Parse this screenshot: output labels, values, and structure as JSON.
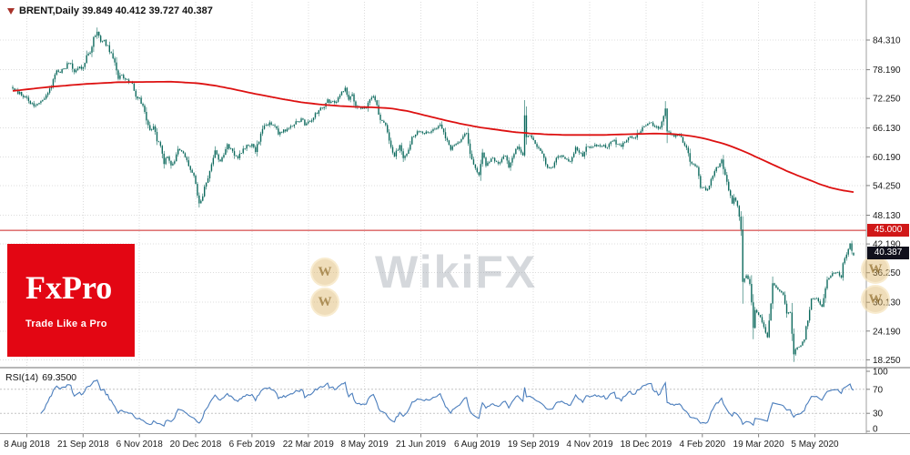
{
  "header": {
    "symbol_label": "BRENT,Daily",
    "ohlc": {
      "open": "39.849",
      "high": "40.412",
      "low": "39.727",
      "close": "40.387"
    },
    "display": "BRENT,Daily 39.849 40.412 39.727 40.387"
  },
  "price_axis": {
    "hline_label": "45.000",
    "current_price_label": "40.387"
  },
  "rsi_panel": {
    "label": "RSI(14)",
    "value": "69.3500",
    "level_labels": [
      "100",
      "70",
      "30",
      "0"
    ]
  },
  "logo": {
    "title": "FxPro",
    "tagline": "Trade Like a Pro"
  },
  "watermark": {
    "text": "WikiFX",
    "coin_letter": "W"
  },
  "colors": {
    "candle": "#0d6a5e",
    "ma": "#dd1111",
    "hline": "#cc2222",
    "rsi_line": "#4a7dbc",
    "grid": "#dcdcdc",
    "border": "#9f9f9f",
    "axis_text": "#1a1a1a",
    "tag_current_bg": "#10101c",
    "tag_hline_bg": "#d01818",
    "logo_bg": "#e30613"
  },
  "chart_data": {
    "type": "candlestick",
    "symbol": "BRENT",
    "timeframe": "Daily",
    "title": "BRENT, Daily",
    "legend_position": "none",
    "grid": "dotted",
    "ylim": [
      17.0,
      92.2
    ],
    "num_days": 478,
    "last_candle": {
      "open": 39.849,
      "high": 40.412,
      "low": 39.727,
      "close": 40.387
    },
    "horizontal_line": 45.0,
    "y_tick_labels": [
      "84.310",
      "78.190",
      "72.250",
      "66.130",
      "60.190",
      "54.250",
      "48.130",
      "42.190",
      "36.250",
      "30.130",
      "24.190",
      "18.250"
    ],
    "y_tick_values": [
      84.31,
      78.19,
      72.25,
      66.13,
      60.19,
      54.25,
      48.13,
      42.19,
      36.25,
      30.13,
      24.19,
      18.25
    ],
    "x_ticks": [
      {
        "day": 8,
        "label": "8 Aug 2018"
      },
      {
        "day": 40,
        "label": "21 Sep 2018"
      },
      {
        "day": 72,
        "label": "6 Nov 2018"
      },
      {
        "day": 104,
        "label": "20 Dec 2018"
      },
      {
        "day": 136,
        "label": "6 Feb 2019"
      },
      {
        "day": 168,
        "label": "22 Mar 2019"
      },
      {
        "day": 200,
        "label": "8 May 2019"
      },
      {
        "day": 232,
        "label": "21 Jun 2019"
      },
      {
        "day": 264,
        "label": "6 Aug 2019"
      },
      {
        "day": 296,
        "label": "19 Sep 2019"
      },
      {
        "day": 328,
        "label": "4 Nov 2019"
      },
      {
        "day": 360,
        "label": "18 Dec 2019"
      },
      {
        "day": 392,
        "label": "4 Feb 2020"
      },
      {
        "day": 424,
        "label": "19 Mar 2020"
      },
      {
        "day": 456,
        "label": "5 May 2020"
      }
    ],
    "close_anchors": [
      [
        0,
        74.3
      ],
      [
        4,
        73.2
      ],
      [
        8,
        72.3
      ],
      [
        11,
        71.0
      ],
      [
        14,
        70.8
      ],
      [
        18,
        72.5
      ],
      [
        22,
        75.0
      ],
      [
        24,
        77.5
      ],
      [
        28,
        78.0
      ],
      [
        32,
        79.5
      ],
      [
        35,
        78.1
      ],
      [
        38,
        78.7
      ],
      [
        40,
        78.8
      ],
      [
        42,
        81.2
      ],
      [
        44,
        81.5
      ],
      [
        46,
        84.6
      ],
      [
        48,
        86.3
      ],
      [
        50,
        84.2
      ],
      [
        52,
        84.0
      ],
      [
        54,
        83.1
      ],
      [
        56,
        81.3
      ],
      [
        58,
        79.8
      ],
      [
        60,
        76.5
      ],
      [
        62,
        77.0
      ],
      [
        64,
        76.2
      ],
      [
        66,
        75.5
      ],
      [
        68,
        75.0
      ],
      [
        70,
        72.9
      ],
      [
        72,
        72.1
      ],
      [
        74,
        70.7
      ],
      [
        77,
        66.5
      ],
      [
        78,
        65.5
      ],
      [
        80,
        66.8
      ],
      [
        82,
        63.5
      ],
      [
        84,
        62.5
      ],
      [
        86,
        59.0
      ],
      [
        88,
        60.5
      ],
      [
        90,
        58.7
      ],
      [
        92,
        59.5
      ],
      [
        94,
        62.0
      ],
      [
        96,
        61.5
      ],
      [
        98,
        60.0
      ],
      [
        101,
        57.5
      ],
      [
        103,
        56.3
      ],
      [
        104,
        54.4
      ],
      [
        106,
        50.5
      ],
      [
        108,
        52.2
      ],
      [
        109,
        53.8
      ],
      [
        110,
        54.9
      ],
      [
        112,
        57.1
      ],
      [
        115,
        61.4
      ],
      [
        118,
        59.0
      ],
      [
        122,
        62.7
      ],
      [
        125,
        61.1
      ],
      [
        128,
        60.0
      ],
      [
        131,
        61.9
      ],
      [
        133,
        62.5
      ],
      [
        136,
        62.7
      ],
      [
        138,
        61.5
      ],
      [
        140,
        63.6
      ],
      [
        142,
        66.3
      ],
      [
        146,
        67.1
      ],
      [
        149,
        66.4
      ],
      [
        151,
        65.1
      ],
      [
        156,
        65.7
      ],
      [
        160,
        67.2
      ],
      [
        165,
        67.9
      ],
      [
        166,
        67.0
      ],
      [
        169,
        67.8
      ],
      [
        171,
        68.4
      ],
      [
        172,
        69.0
      ],
      [
        176,
        70.3
      ],
      [
        179,
        71.7
      ],
      [
        184,
        71.6
      ],
      [
        189,
        74.6
      ],
      [
        191,
        72.2
      ],
      [
        193,
        72.8
      ],
      [
        195,
        70.8
      ],
      [
        198,
        70.4
      ],
      [
        201,
        70.2
      ],
      [
        204,
        72.6
      ],
      [
        206,
        72.0
      ],
      [
        209,
        67.8
      ],
      [
        212,
        66.9
      ],
      [
        215,
        62.0
      ],
      [
        217,
        60.6
      ],
      [
        220,
        62.5
      ],
      [
        222,
        60.0
      ],
      [
        225,
        61.5
      ],
      [
        227,
        64.5
      ],
      [
        230,
        65.2
      ],
      [
        236,
        65.1
      ],
      [
        243,
        67.0
      ],
      [
        246,
        64.0
      ],
      [
        249,
        61.9
      ],
      [
        253,
        63.2
      ],
      [
        258,
        65.2
      ],
      [
        260,
        60.5
      ],
      [
        263,
        58.0
      ],
      [
        265,
        56.2
      ],
      [
        267,
        61.3
      ],
      [
        269,
        58.2
      ],
      [
        272,
        60.0
      ],
      [
        276,
        58.7
      ],
      [
        280,
        60.4
      ],
      [
        282,
        58.3
      ],
      [
        287,
        62.4
      ],
      [
        290,
        60.2
      ],
      [
        291,
        69.0
      ],
      [
        292,
        64.6
      ],
      [
        294,
        64.4
      ],
      [
        297,
        63.1
      ],
      [
        301,
        60.8
      ],
      [
        304,
        57.7
      ],
      [
        307,
        58.2
      ],
      [
        310,
        60.5
      ],
      [
        314,
        59.9
      ],
      [
        317,
        59.0
      ],
      [
        320,
        62.0
      ],
      [
        324,
        60.2
      ],
      [
        326,
        62.1
      ],
      [
        330,
        62.5
      ],
      [
        334,
        62.3
      ],
      [
        338,
        62.4
      ],
      [
        341,
        63.7
      ],
      [
        345,
        62.4
      ],
      [
        348,
        63.0
      ],
      [
        350,
        64.4
      ],
      [
        354,
        64.2
      ],
      [
        356,
        65.3
      ],
      [
        358,
        66.2
      ],
      [
        362,
        67.2
      ],
      [
        367,
        66.0
      ],
      [
        368,
        66.3
      ],
      [
        370,
        68.9
      ],
      [
        371,
        70.0
      ],
      [
        372,
        65.4
      ],
      [
        376,
        64.5
      ],
      [
        379,
        64.9
      ],
      [
        383,
        62.0
      ],
      [
        385,
        59.3
      ],
      [
        389,
        58.2
      ],
      [
        391,
        54.0
      ],
      [
        395,
        53.3
      ],
      [
        399,
        57.3
      ],
      [
        403,
        59.3
      ],
      [
        405,
        56.3
      ],
      [
        409,
        50.5
      ],
      [
        410,
        51.9
      ],
      [
        412,
        50.0
      ],
      [
        414,
        45.3
      ],
      [
        415,
        34.4
      ],
      [
        417,
        35.8
      ],
      [
        419,
        33.9
      ],
      [
        420,
        30.1
      ],
      [
        421,
        24.9
      ],
      [
        422,
        28.5
      ],
      [
        425,
        27.2
      ],
      [
        427,
        24.9
      ],
      [
        429,
        22.8
      ],
      [
        431,
        30.0
      ],
      [
        432,
        34.1
      ],
      [
        435,
        32.8
      ],
      [
        438,
        31.7
      ],
      [
        440,
        27.7
      ],
      [
        442,
        28.1
      ],
      [
        444,
        19.3
      ],
      [
        445,
        20.4
      ],
      [
        448,
        21.3
      ],
      [
        450,
        22.5
      ],
      [
        451,
        25.3
      ],
      [
        452,
        26.4
      ],
      [
        454,
        31.0
      ],
      [
        457,
        31.0
      ],
      [
        460,
        29.2
      ],
      [
        463,
        34.8
      ],
      [
        466,
        36.1
      ],
      [
        469,
        36.2
      ],
      [
        471,
        35.3
      ],
      [
        472,
        38.3
      ],
      [
        474,
        39.8
      ],
      [
        476,
        42.3
      ],
      [
        477,
        40.8
      ],
      [
        478,
        40.39
      ]
    ],
    "wick_overrides": [
      {
        "day": 48,
        "high": 86.9
      },
      {
        "day": 291,
        "high": 71.9
      },
      {
        "day": 371,
        "high": 71.7
      },
      {
        "day": 415,
        "low": 31.0
      },
      {
        "day": 444,
        "low": 17.8
      }
    ],
    "ma": {
      "name": "moving-average",
      "anchors": [
        [
          0,
          73.8
        ],
        [
          20,
          74.6
        ],
        [
          40,
          75.2
        ],
        [
          60,
          75.6
        ],
        [
          90,
          75.7
        ],
        [
          105,
          75.4
        ],
        [
          115,
          74.9
        ],
        [
          125,
          74.2
        ],
        [
          135,
          73.4
        ],
        [
          145,
          72.7
        ],
        [
          155,
          72.0
        ],
        [
          165,
          71.4
        ],
        [
          175,
          71.0
        ],
        [
          185,
          70.7
        ],
        [
          195,
          70.5
        ],
        [
          205,
          70.4
        ],
        [
          215,
          70.2
        ],
        [
          225,
          69.6
        ],
        [
          235,
          68.7
        ],
        [
          245,
          67.8
        ],
        [
          255,
          67.0
        ],
        [
          265,
          66.3
        ],
        [
          275,
          65.8
        ],
        [
          285,
          65.3
        ],
        [
          295,
          65.0
        ],
        [
          305,
          64.8
        ],
        [
          315,
          64.7
        ],
        [
          325,
          64.7
        ],
        [
          335,
          64.7
        ],
        [
          345,
          64.8
        ],
        [
          355,
          64.9
        ],
        [
          365,
          65.0
        ],
        [
          375,
          64.9
        ],
        [
          381,
          64.7
        ],
        [
          387,
          64.4
        ],
        [
          393,
          64.0
        ],
        [
          399,
          63.4
        ],
        [
          405,
          62.8
        ],
        [
          411,
          62.0
        ],
        [
          417,
          61.1
        ],
        [
          423,
          60.1
        ],
        [
          429,
          59.1
        ],
        [
          435,
          58.1
        ],
        [
          441,
          57.1
        ],
        [
          447,
          56.2
        ],
        [
          453,
          55.4
        ],
        [
          459,
          54.5
        ],
        [
          465,
          53.8
        ],
        [
          471,
          53.3
        ],
        [
          478,
          52.9
        ]
      ]
    },
    "rsi": {
      "period": 14,
      "current": 69.35,
      "levels": [
        100,
        70,
        30,
        0
      ],
      "overbought": 70,
      "oversold": 30
    }
  }
}
